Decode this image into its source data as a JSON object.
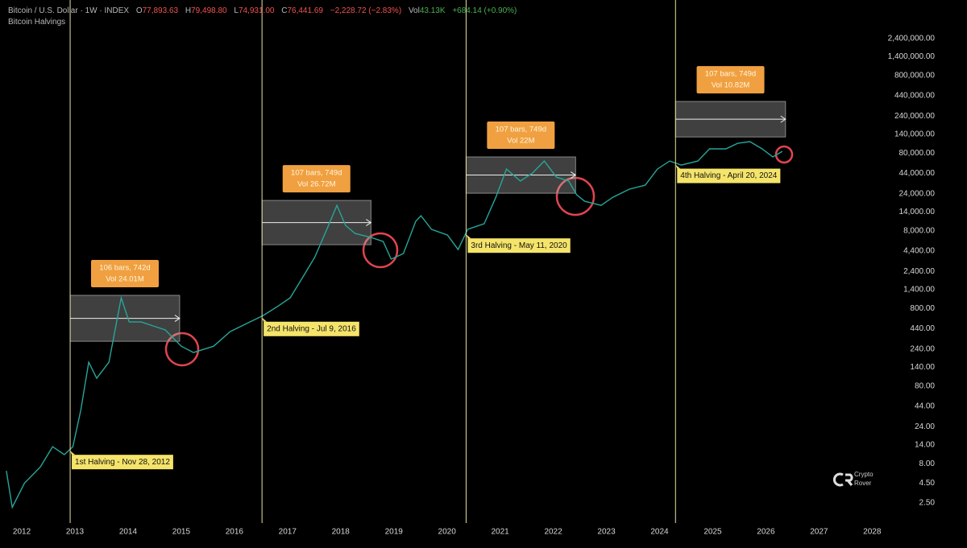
{
  "chart_data": {
    "type": "line",
    "log_scale": true,
    "header": {
      "symbol": "Bitcoin / U.S. Dollar · 1W · INDEX",
      "open": {
        "label": "O",
        "value": "77,893.63"
      },
      "high": {
        "label": "H",
        "value": "79,498.80"
      },
      "low": {
        "label": "L",
        "value": "74,931.00"
      },
      "close": {
        "label": "C",
        "value": "76,441.69"
      },
      "change": "−2,228.72 (−2.83%)",
      "volume": {
        "label": "Vol",
        "value": "43.13K"
      },
      "volume_change": "+684.14 (+0.90%)"
    },
    "indicator": "Bitcoin Halvings",
    "watermark": [
      "Crypto",
      "Rover"
    ],
    "color": "#26a69a",
    "x": [
      2011.71,
      2011.82,
      2012.05,
      2012.35,
      2012.58,
      2012.8,
      2012.96,
      2013.11,
      2013.26,
      2013.41,
      2013.64,
      2013.87,
      2014.02,
      2014.25,
      2014.47,
      2014.7,
      2015.0,
      2015.23,
      2015.61,
      2015.92,
      2016.29,
      2016.54,
      2016.83,
      2017.05,
      2017.28,
      2017.51,
      2017.74,
      2017.93,
      2018.09,
      2018.27,
      2018.57,
      2018.8,
      2018.95,
      2019.18,
      2019.41,
      2019.51,
      2019.71,
      2020.01,
      2020.21,
      2020.39,
      2020.7,
      2020.92,
      2021.12,
      2021.38,
      2021.61,
      2021.83,
      2022.06,
      2022.29,
      2022.44,
      2022.59,
      2022.9,
      2023.12,
      2023.43,
      2023.73,
      2023.96,
      2024.19,
      2024.41,
      2024.72,
      2024.94,
      2025.25,
      2025.47,
      2025.7,
      2025.93,
      2026.13,
      2026.31
    ],
    "values": [
      6.5,
      2.2,
      4.5,
      7.3,
      13.3,
      10.5,
      13.3,
      39,
      163,
      101,
      163,
      1100,
      537,
      537,
      478,
      424,
      262,
      217,
      262,
      404,
      537,
      650,
      867,
      1100,
      2000,
      3630,
      8380,
      17100,
      9440,
      7430,
      6590,
      5850,
      3470,
      4090,
      10600,
      12560,
      8380,
      7080,
      4610,
      8380,
      9890,
      21700,
      50100,
      35100,
      44600,
      63700,
      39500,
      35100,
      23400,
      19300,
      17100,
      21700,
      27600,
      31100,
      50100,
      63700,
      56500,
      63700,
      91200,
      91200,
      107700,
      113000,
      91200,
      71800,
      84700
    ],
    "xlim": [
      2011.59,
      2028.42
    ],
    "xticks": [
      2012,
      2013,
      2014,
      2015,
      2016,
      2017,
      2018,
      2019,
      2020,
      2021,
      2022,
      2023,
      2024,
      2025,
      2026,
      2027,
      2028
    ],
    "ylim": [
      1.38,
      7550000
    ],
    "yticks": [
      {
        "value": 2400000,
        "label": "2,400,000.00"
      },
      {
        "value": 1400000,
        "label": "1,400,000.00"
      },
      {
        "value": 800000,
        "label": "800,000.00"
      },
      {
        "value": 440000,
        "label": "440,000.00"
      },
      {
        "value": 240000,
        "label": "240,000.00"
      },
      {
        "value": 140000,
        "label": "140,000.00"
      },
      {
        "value": 80000,
        "label": "80,000.00"
      },
      {
        "value": 44000,
        "label": "44,000.00"
      },
      {
        "value": 24000,
        "label": "24,000.00"
      },
      {
        "value": 14000,
        "label": "14,000.00"
      },
      {
        "value": 8000,
        "label": "8,000.00"
      },
      {
        "value": 4400,
        "label": "4,400.00"
      },
      {
        "value": 2400,
        "label": "2,400.00"
      },
      {
        "value": 1400,
        "label": "1,400.00"
      },
      {
        "value": 800,
        "label": "800.00"
      },
      {
        "value": 440,
        "label": "440.00"
      },
      {
        "value": 240,
        "label": "240.00"
      },
      {
        "value": 140,
        "label": "140.00"
      },
      {
        "value": 80,
        "label": "80.00"
      },
      {
        "value": 44,
        "label": "44.00"
      },
      {
        "value": 24,
        "label": "24.00"
      },
      {
        "value": 14,
        "label": "14.00"
      },
      {
        "value": 8,
        "label": "8.00"
      },
      {
        "value": 4.5,
        "label": "4.50"
      },
      {
        "value": 2.5,
        "label": "2.50"
      }
    ],
    "halvings": [
      {
        "label": "1st Halving - Nov 28, 2012",
        "x": 2012.91
      },
      {
        "label": "2nd Halving - Jul 9, 2016",
        "x": 2016.52
      },
      {
        "label": "3rd Halving - May 11, 2020",
        "x": 2020.36
      },
      {
        "label": "4th Halving - April 20, 2024",
        "x": 2024.3
      }
    ],
    "ranges": [
      {
        "x": [
          2012.91,
          2014.97
        ],
        "y": [
          303,
          1183
        ],
        "bars": "106 bars, 742d",
        "volume": "Vol 24.01M"
      },
      {
        "x": [
          2016.52,
          2018.57
        ],
        "y": [
          5320,
          19770
        ],
        "bars": "107 bars, 749d",
        "volume": "Vol 26.72M"
      },
      {
        "x": [
          2020.36,
          2022.42
        ],
        "y": [
          24500,
          71800
        ],
        "bars": "107 bars, 749d",
        "volume": "Vol 22M"
      },
      {
        "x": [
          2024.3,
          2026.37
        ],
        "y": [
          130000,
          372000
        ],
        "bars": "107 bars, 749d",
        "volume": "Vol 10.82M"
      }
    ]
  }
}
